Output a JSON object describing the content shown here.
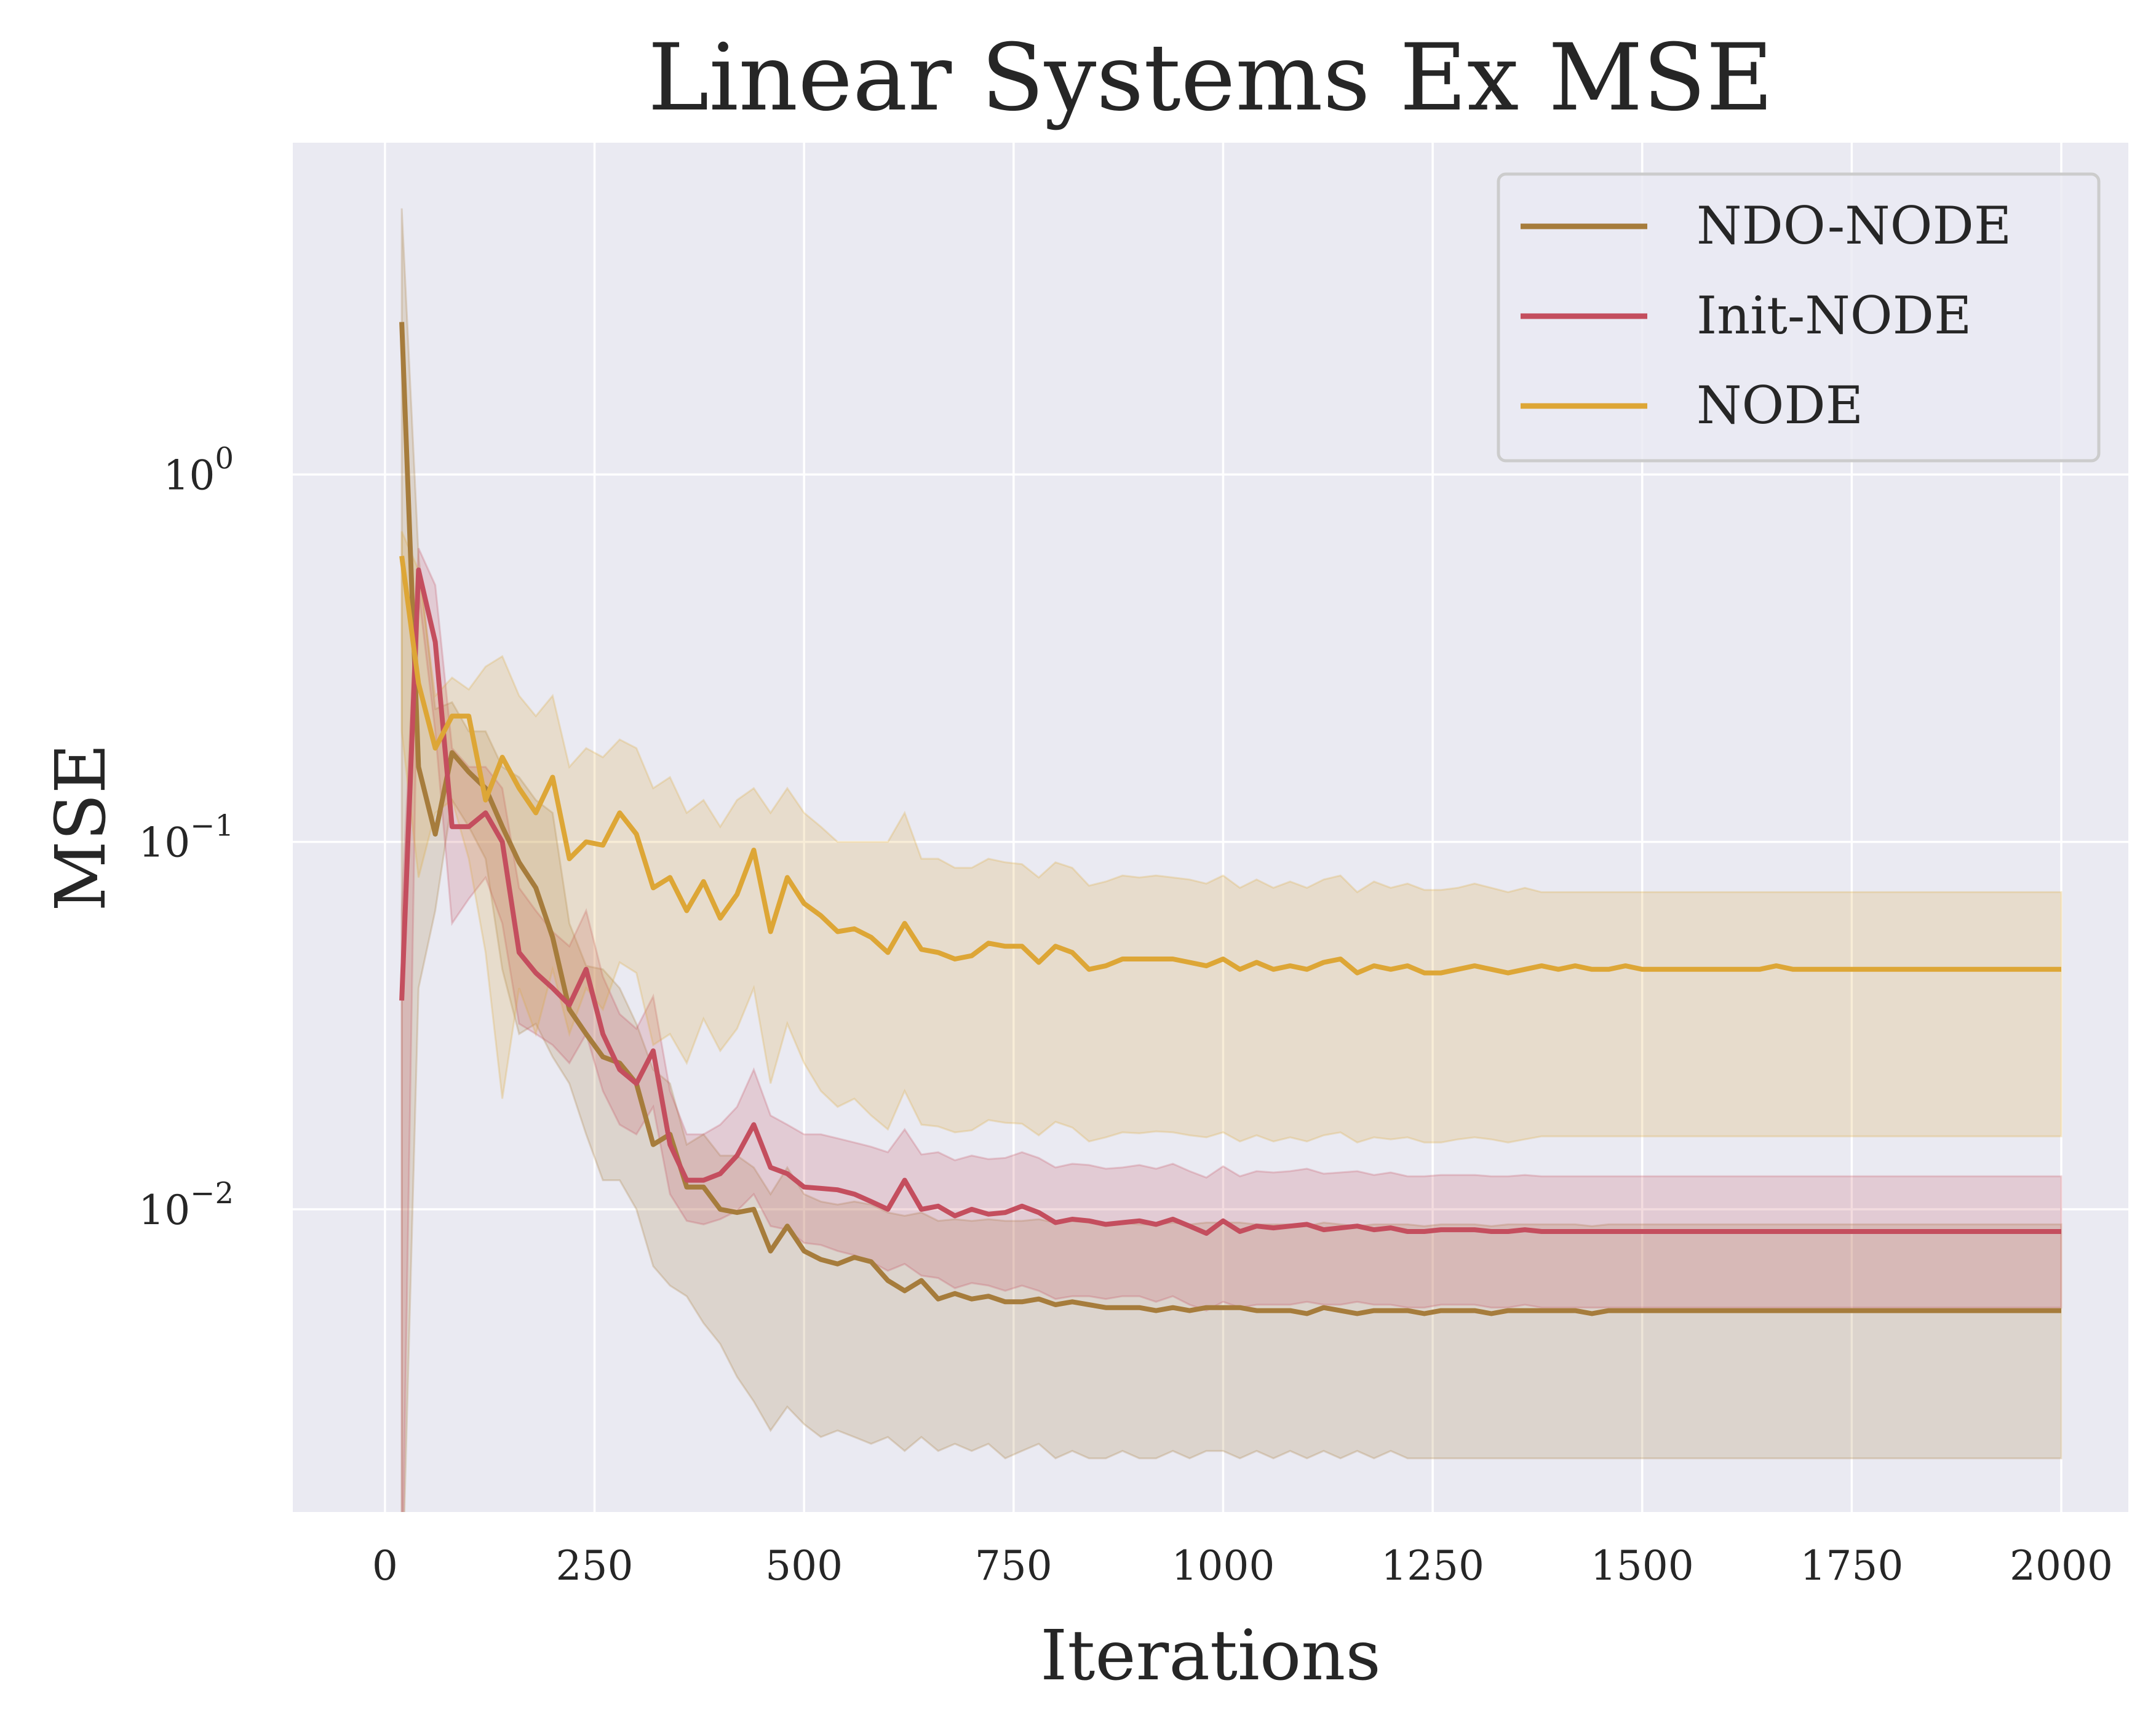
{
  "chart_data": {
    "type": "line",
    "title": "Linear Systems Ex MSE",
    "xlabel": "Iterations",
    "ylabel": "MSE",
    "xlim": [
      -110,
      2080
    ],
    "ylim": [
      0.0015,
      8.0
    ],
    "yscale": "log",
    "grid": true,
    "legend_position": "top-right",
    "xticks": [
      0,
      250,
      500,
      750,
      1000,
      1250,
      1500,
      1750,
      2000
    ],
    "xtick_labels": [
      "0",
      "250",
      "500",
      "750",
      "1000",
      "1250",
      "1500",
      "1750",
      "2000"
    ],
    "yticks": [
      1,
      0.1,
      0.01
    ],
    "ytick_labels": [
      {
        "base": "10",
        "exp": "0"
      },
      {
        "base": "10",
        "exp": "−1"
      },
      {
        "base": "10",
        "exp": "−2"
      }
    ],
    "x": [
      20,
      40,
      60,
      80,
      100,
      120,
      140,
      160,
      180,
      200,
      220,
      240,
      260,
      280,
      300,
      320,
      340,
      360,
      380,
      400,
      420,
      440,
      460,
      480,
      500,
      520,
      540,
      560,
      580,
      600,
      620,
      640,
      660,
      680,
      700,
      720,
      740,
      760,
      780,
      800,
      820,
      840,
      860,
      880,
      900,
      920,
      940,
      960,
      980,
      1000,
      1020,
      1040,
      1060,
      1080,
      1100,
      1120,
      1140,
      1160,
      1180,
      1200,
      1220,
      1240,
      1260,
      1280,
      1300,
      1320,
      1340,
      1360,
      1380,
      1400,
      1420,
      1440,
      1460,
      1480,
      1500,
      1520,
      1540,
      1560,
      1580,
      1600,
      1620,
      1640,
      1660,
      1680,
      1700,
      1720,
      1740,
      1760,
      1780,
      1800,
      1820,
      1840,
      1860,
      1880,
      1900,
      1920,
      1940,
      1960,
      1980,
      2000
    ],
    "series": [
      {
        "name": "NDO-NODE",
        "color": "#a67c3c",
        "values": [
          2.6,
          0.16,
          0.105,
          0.175,
          0.155,
          0.14,
          0.11,
          0.088,
          0.075,
          0.055,
          0.035,
          0.03,
          0.026,
          0.025,
          0.022,
          0.015,
          0.016,
          0.0115,
          0.0115,
          0.01,
          0.0098,
          0.01,
          0.0077,
          0.009,
          0.0077,
          0.0073,
          0.0071,
          0.0074,
          0.0072,
          0.0064,
          0.006,
          0.0064,
          0.0057,
          0.0059,
          0.0057,
          0.0058,
          0.0056,
          0.0056,
          0.0057,
          0.0055,
          0.0056,
          0.0055,
          0.0054,
          0.0054,
          0.0054,
          0.0053,
          0.0054,
          0.0053,
          0.0054,
          0.0054,
          0.0054,
          0.0053,
          0.0053,
          0.0053,
          0.0052,
          0.0054,
          0.0053,
          0.0052,
          0.0053,
          0.0053,
          0.0053,
          0.0052,
          0.0053,
          0.0053,
          0.0053,
          0.0052,
          0.0053,
          0.0053,
          0.0053,
          0.0053,
          0.0053,
          0.0052,
          0.0053,
          0.0053,
          0.0053,
          0.0053,
          0.0053,
          0.0053,
          0.0053,
          0.0053,
          0.0053,
          0.0053,
          0.0053,
          0.0053,
          0.0053,
          0.0053,
          0.0053,
          0.0053,
          0.0053,
          0.0053,
          0.0053,
          0.0053,
          0.0053,
          0.0053,
          0.0053,
          0.0053,
          0.0053,
          0.0053,
          0.0053,
          0.0053
        ],
        "lower": [
          0.0008,
          0.04,
          0.065,
          0.13,
          0.11,
          0.09,
          0.045,
          0.03,
          0.032,
          0.026,
          0.022,
          0.016,
          0.012,
          0.012,
          0.01,
          0.007,
          0.0062,
          0.0058,
          0.0049,
          0.0043,
          0.0035,
          0.003,
          0.0025,
          0.0029,
          0.0026,
          0.0024,
          0.0025,
          0.0024,
          0.0023,
          0.0024,
          0.0022,
          0.0024,
          0.0022,
          0.0023,
          0.0022,
          0.0023,
          0.0021,
          0.0022,
          0.0023,
          0.0021,
          0.0022,
          0.0021,
          0.0021,
          0.0022,
          0.0021,
          0.0021,
          0.0022,
          0.0021,
          0.0022,
          0.0022,
          0.0021,
          0.0022,
          0.0021,
          0.0022,
          0.0021,
          0.0022,
          0.0021,
          0.0022,
          0.0021,
          0.0022,
          0.0021,
          0.0021,
          0.0021,
          0.0021,
          0.0021,
          0.0021,
          0.0021,
          0.0021,
          0.0021,
          0.0021,
          0.0021,
          0.0021,
          0.0021,
          0.0021,
          0.0021,
          0.0021,
          0.0021,
          0.0021,
          0.0021,
          0.0021,
          0.0021,
          0.0021,
          0.0021,
          0.0021,
          0.0021,
          0.0021,
          0.0021,
          0.0021,
          0.0021,
          0.0021,
          0.0021,
          0.0021,
          0.0021,
          0.0021,
          0.0021,
          0.0021,
          0.0021,
          0.0021,
          0.0021,
          0.0021
        ],
        "upper": [
          5.3,
          0.6,
          0.23,
          0.24,
          0.2,
          0.2,
          0.16,
          0.15,
          0.13,
          0.12,
          0.06,
          0.046,
          0.045,
          0.04,
          0.032,
          0.024,
          0.022,
          0.015,
          0.016,
          0.014,
          0.014,
          0.013,
          0.011,
          0.013,
          0.011,
          0.0105,
          0.0103,
          0.0105,
          0.0103,
          0.0098,
          0.0096,
          0.0098,
          0.0093,
          0.0094,
          0.0093,
          0.0094,
          0.0093,
          0.0093,
          0.0094,
          0.0092,
          0.0093,
          0.0092,
          0.0091,
          0.0092,
          0.0091,
          0.0091,
          0.0092,
          0.0091,
          0.0092,
          0.0092,
          0.0092,
          0.0091,
          0.0091,
          0.0091,
          0.009,
          0.0092,
          0.0091,
          0.009,
          0.0091,
          0.0091,
          0.0091,
          0.009,
          0.0091,
          0.0091,
          0.0091,
          0.009,
          0.0091,
          0.0091,
          0.0091,
          0.0091,
          0.0091,
          0.009,
          0.0091,
          0.0091,
          0.0091,
          0.0091,
          0.0091,
          0.0091,
          0.0091,
          0.0091,
          0.0091,
          0.0091,
          0.0091,
          0.0091,
          0.0091,
          0.0091,
          0.0091,
          0.0091,
          0.0091,
          0.0091,
          0.0091,
          0.0091,
          0.0091,
          0.0091,
          0.0091,
          0.0091,
          0.0091,
          0.0091,
          0.0091,
          0.0091
        ]
      },
      {
        "name": "Init-NODE",
        "color": "#c44e5e",
        "values": [
          0.037,
          0.55,
          0.35,
          0.11,
          0.11,
          0.12,
          0.1,
          0.05,
          0.044,
          0.04,
          0.036,
          0.045,
          0.03,
          0.024,
          0.022,
          0.027,
          0.015,
          0.012,
          0.012,
          0.0125,
          0.014,
          0.017,
          0.013,
          0.0125,
          0.0115,
          0.0114,
          0.0113,
          0.011,
          0.0105,
          0.01,
          0.012,
          0.01,
          0.0102,
          0.0096,
          0.01,
          0.0097,
          0.0098,
          0.0102,
          0.0098,
          0.0092,
          0.0094,
          0.0093,
          0.0091,
          0.0092,
          0.0093,
          0.0091,
          0.0094,
          0.009,
          0.0086,
          0.0093,
          0.0087,
          0.009,
          0.0089,
          0.009,
          0.0091,
          0.0088,
          0.0089,
          0.009,
          0.0088,
          0.0089,
          0.0087,
          0.0087,
          0.0088,
          0.0088,
          0.0088,
          0.0087,
          0.0087,
          0.0088,
          0.0087,
          0.0087,
          0.0087,
          0.0087,
          0.0087,
          0.0087,
          0.0087,
          0.0087,
          0.0087,
          0.0087,
          0.0087,
          0.0087,
          0.0087,
          0.0087,
          0.0087,
          0.0087,
          0.0087,
          0.0087,
          0.0087,
          0.0087,
          0.0087,
          0.0087,
          0.0087,
          0.0087,
          0.0087,
          0.0087,
          0.0087,
          0.0087,
          0.0087,
          0.0087,
          0.0087,
          0.0087
        ],
        "lower": [
          0.0008,
          0.48,
          0.2,
          0.06,
          0.07,
          0.08,
          0.06,
          0.032,
          0.03,
          0.028,
          0.025,
          0.03,
          0.021,
          0.017,
          0.016,
          0.019,
          0.011,
          0.0093,
          0.0091,
          0.0094,
          0.0099,
          0.011,
          0.009,
          0.0088,
          0.0081,
          0.008,
          0.0077,
          0.0075,
          0.0072,
          0.0068,
          0.0071,
          0.0066,
          0.0065,
          0.0061,
          0.0063,
          0.0062,
          0.006,
          0.0062,
          0.006,
          0.0057,
          0.0058,
          0.0058,
          0.0057,
          0.0058,
          0.0058,
          0.0056,
          0.0058,
          0.0055,
          0.0053,
          0.0056,
          0.0054,
          0.0055,
          0.0055,
          0.0055,
          0.0056,
          0.0055,
          0.0055,
          0.0056,
          0.0055,
          0.0055,
          0.0054,
          0.0054,
          0.0055,
          0.0055,
          0.0055,
          0.0054,
          0.0054,
          0.0055,
          0.0054,
          0.0054,
          0.0054,
          0.0054,
          0.0054,
          0.0054,
          0.0054,
          0.0054,
          0.0054,
          0.0054,
          0.0054,
          0.0054,
          0.0054,
          0.0054,
          0.0054,
          0.0054,
          0.0054,
          0.0054,
          0.0054,
          0.0054,
          0.0054,
          0.0054,
          0.0054,
          0.0054,
          0.0054,
          0.0054,
          0.0054,
          0.0054,
          0.0054,
          0.0054,
          0.0054,
          0.0054
        ],
        "upper": [
          0.065,
          0.63,
          0.5,
          0.18,
          0.16,
          0.16,
          0.14,
          0.075,
          0.065,
          0.057,
          0.052,
          0.065,
          0.043,
          0.034,
          0.031,
          0.038,
          0.021,
          0.016,
          0.016,
          0.017,
          0.019,
          0.024,
          0.018,
          0.017,
          0.016,
          0.016,
          0.0156,
          0.0152,
          0.0148,
          0.0143,
          0.0165,
          0.0141,
          0.0143,
          0.0136,
          0.014,
          0.0137,
          0.0138,
          0.0143,
          0.0138,
          0.013,
          0.0133,
          0.0132,
          0.0129,
          0.013,
          0.0132,
          0.0129,
          0.0133,
          0.0127,
          0.0122,
          0.0131,
          0.0123,
          0.0127,
          0.0126,
          0.0127,
          0.0129,
          0.0125,
          0.0126,
          0.0127,
          0.0124,
          0.0126,
          0.0123,
          0.0123,
          0.0124,
          0.0124,
          0.0124,
          0.0123,
          0.0123,
          0.0124,
          0.0123,
          0.0123,
          0.0123,
          0.0123,
          0.0123,
          0.0123,
          0.0123,
          0.0123,
          0.0123,
          0.0123,
          0.0123,
          0.0123,
          0.0123,
          0.0123,
          0.0123,
          0.0123,
          0.0123,
          0.0123,
          0.0123,
          0.0123,
          0.0123,
          0.0123,
          0.0123,
          0.0123,
          0.0123,
          0.0123,
          0.0123,
          0.0123,
          0.0123,
          0.0123,
          0.0123,
          0.0123
        ]
      },
      {
        "name": "NODE",
        "color": "#dda636",
        "values": [
          0.6,
          0.27,
          0.18,
          0.22,
          0.22,
          0.13,
          0.17,
          0.14,
          0.12,
          0.15,
          0.09,
          0.1,
          0.098,
          0.12,
          0.105,
          0.075,
          0.08,
          0.065,
          0.078,
          0.062,
          0.072,
          0.095,
          0.057,
          0.08,
          0.068,
          0.063,
          0.057,
          0.058,
          0.055,
          0.05,
          0.06,
          0.051,
          0.05,
          0.048,
          0.049,
          0.053,
          0.052,
          0.052,
          0.047,
          0.052,
          0.05,
          0.045,
          0.046,
          0.048,
          0.048,
          0.048,
          0.048,
          0.047,
          0.046,
          0.048,
          0.045,
          0.047,
          0.045,
          0.046,
          0.045,
          0.047,
          0.048,
          0.044,
          0.046,
          0.045,
          0.046,
          0.044,
          0.044,
          0.045,
          0.046,
          0.045,
          0.044,
          0.045,
          0.046,
          0.045,
          0.046,
          0.045,
          0.045,
          0.046,
          0.045,
          0.045,
          0.045,
          0.045,
          0.045,
          0.045,
          0.045,
          0.045,
          0.046,
          0.045,
          0.045,
          0.045,
          0.045,
          0.045,
          0.045,
          0.045,
          0.045,
          0.045,
          0.045,
          0.045,
          0.045,
          0.045,
          0.045,
          0.045,
          0.045,
          0.045
        ],
        "lower": [
          0.2,
          0.08,
          0.12,
          0.13,
          0.09,
          0.05,
          0.02,
          0.04,
          0.03,
          0.045,
          0.03,
          0.04,
          0.035,
          0.047,
          0.044,
          0.028,
          0.03,
          0.025,
          0.033,
          0.027,
          0.031,
          0.04,
          0.022,
          0.032,
          0.025,
          0.021,
          0.019,
          0.02,
          0.018,
          0.0165,
          0.021,
          0.017,
          0.0168,
          0.0162,
          0.0164,
          0.0175,
          0.0172,
          0.0171,
          0.0159,
          0.0173,
          0.0167,
          0.0153,
          0.0157,
          0.0162,
          0.0161,
          0.0163,
          0.0162,
          0.0159,
          0.0157,
          0.0162,
          0.0153,
          0.0159,
          0.0153,
          0.0157,
          0.0153,
          0.0159,
          0.0162,
          0.0152,
          0.0157,
          0.0155,
          0.0157,
          0.0152,
          0.0152,
          0.0155,
          0.0157,
          0.0155,
          0.0152,
          0.0155,
          0.0158,
          0.0158,
          0.0158,
          0.0158,
          0.0158,
          0.0158,
          0.0158,
          0.0158,
          0.0158,
          0.0158,
          0.0158,
          0.0158,
          0.0158,
          0.0158,
          0.0158,
          0.0158,
          0.0158,
          0.0158,
          0.0158,
          0.0158,
          0.0158,
          0.0158,
          0.0158,
          0.0158,
          0.0158,
          0.0158,
          0.0158,
          0.0158,
          0.0158,
          0.0158,
          0.0158,
          0.0158
        ],
        "upper": [
          0.7,
          0.55,
          0.25,
          0.28,
          0.26,
          0.3,
          0.32,
          0.25,
          0.22,
          0.25,
          0.16,
          0.18,
          0.17,
          0.19,
          0.18,
          0.14,
          0.15,
          0.12,
          0.13,
          0.11,
          0.13,
          0.14,
          0.12,
          0.14,
          0.12,
          0.11,
          0.1,
          0.1,
          0.1,
          0.1,
          0.12,
          0.09,
          0.09,
          0.085,
          0.085,
          0.09,
          0.088,
          0.087,
          0.08,
          0.088,
          0.085,
          0.076,
          0.078,
          0.081,
          0.08,
          0.081,
          0.08,
          0.079,
          0.077,
          0.081,
          0.075,
          0.079,
          0.075,
          0.078,
          0.075,
          0.079,
          0.081,
          0.073,
          0.078,
          0.075,
          0.077,
          0.074,
          0.074,
          0.075,
          0.077,
          0.075,
          0.073,
          0.075,
          0.073,
          0.073,
          0.073,
          0.073,
          0.073,
          0.073,
          0.073,
          0.073,
          0.073,
          0.073,
          0.073,
          0.073,
          0.073,
          0.073,
          0.073,
          0.073,
          0.073,
          0.073,
          0.073,
          0.073,
          0.073,
          0.073,
          0.073,
          0.073,
          0.073,
          0.073,
          0.073,
          0.073,
          0.073,
          0.073,
          0.073,
          0.073
        ]
      }
    ]
  }
}
